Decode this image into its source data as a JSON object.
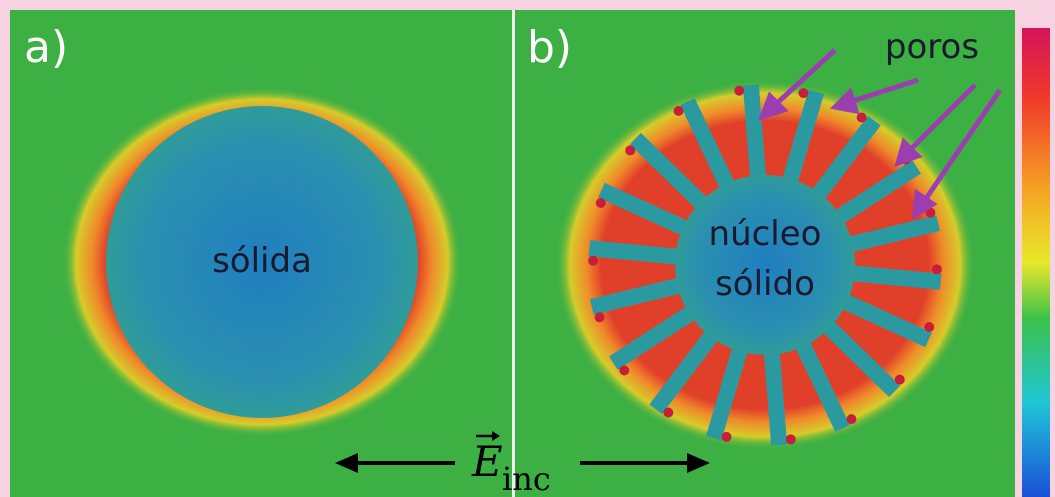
{
  "panels": [
    {
      "label": "a)",
      "annotation": "sólida"
    },
    {
      "label": "b)",
      "annotations": [
        "poros",
        "núcleo",
        "sólido"
      ]
    }
  ],
  "field_label": {
    "symbol": "E",
    "subscript": "inc"
  }
}
